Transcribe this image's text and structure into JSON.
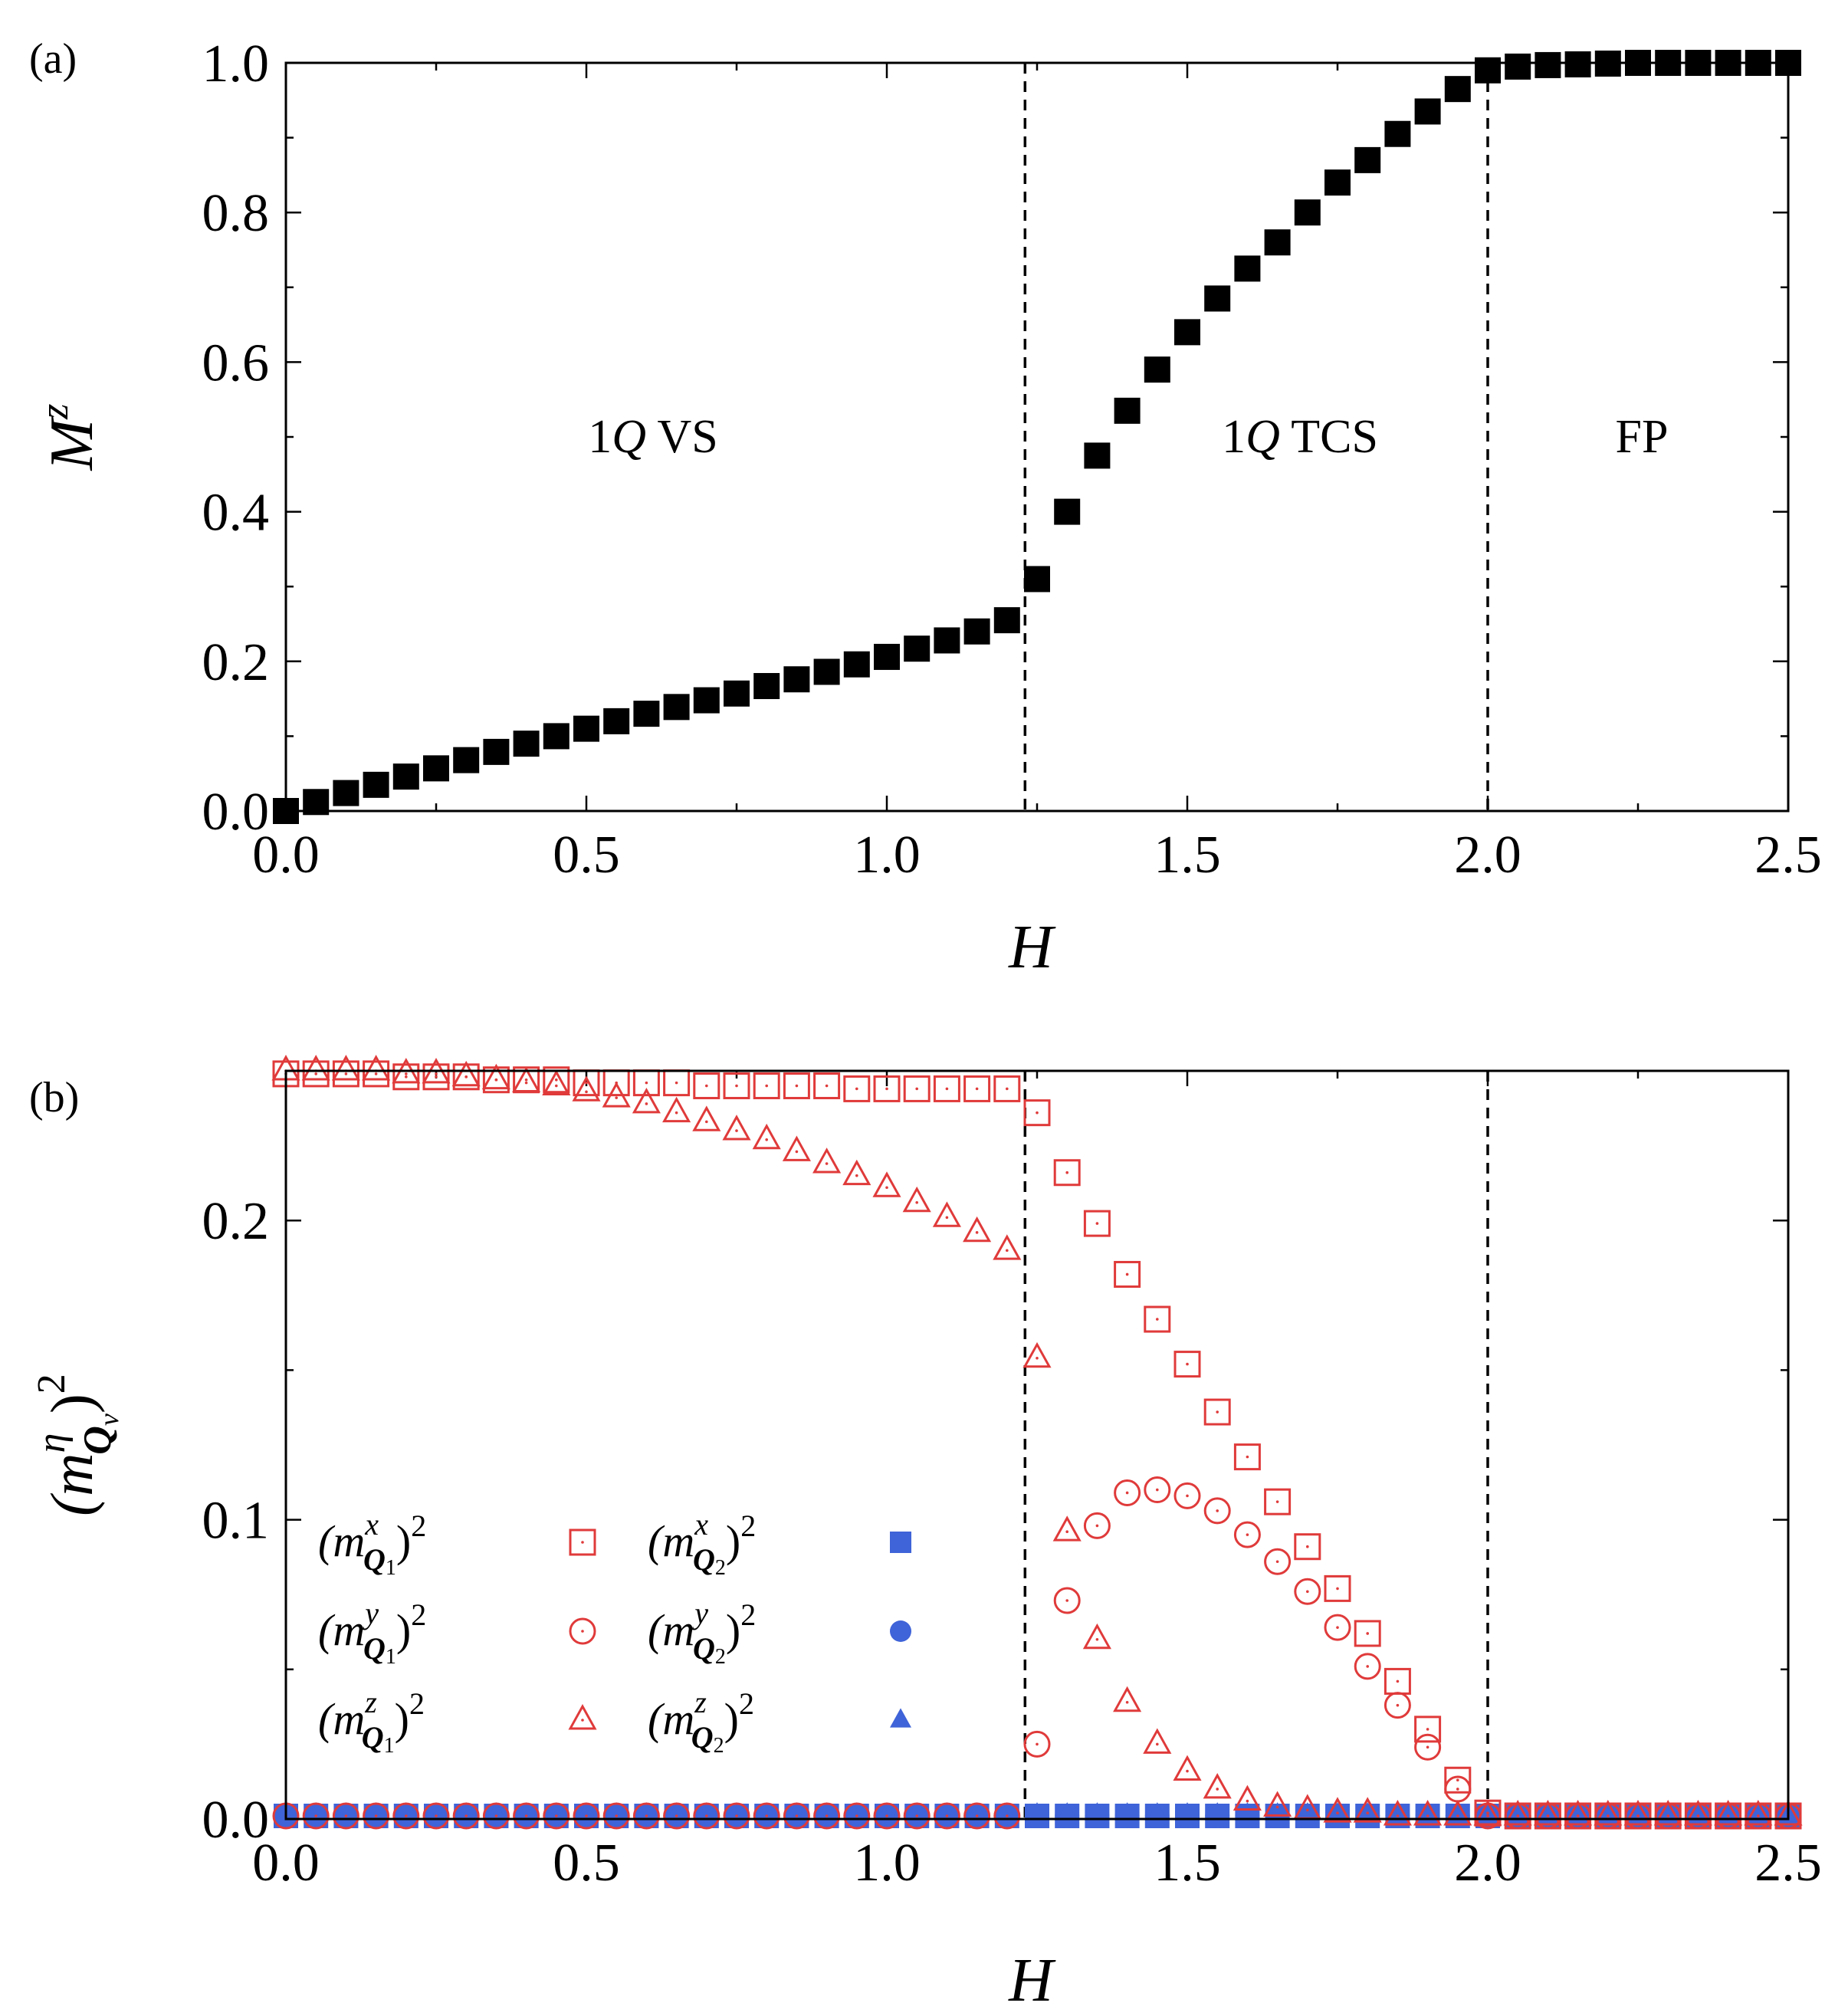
{
  "figure": {
    "panel_a_tag": "(a)",
    "panel_b_tag": "(b)",
    "region_labels": {
      "vs_num": "1",
      "vs_q": "Q",
      "vs_txt": " VS",
      "tcs_num": "1",
      "tcs_q": "Q",
      "tcs_txt": " TCS",
      "fp": "FP"
    },
    "legend": {
      "q1x": {
        "m": "(m",
        "sup": "x",
        "sub": "Q",
        "subidx": "1",
        "close": ")",
        "pow": "2"
      },
      "q1y": {
        "m": "(m",
        "sup": "y",
        "sub": "Q",
        "subidx": "1",
        "close": ")",
        "pow": "2"
      },
      "q1z": {
        "m": "(m",
        "sup": "z",
        "sub": "Q",
        "subidx": "1",
        "close": ")",
        "pow": "2"
      },
      "q2x": {
        "m": "(m",
        "sup": "x",
        "sub": "Q",
        "subidx": "2",
        "close": ")",
        "pow": "2"
      },
      "q2y": {
        "m": "(m",
        "sup": "y",
        "sub": "Q",
        "subidx": "2",
        "close": ")",
        "pow": "2"
      },
      "q2z": {
        "m": "(m",
        "sup": "z",
        "sub": "Q",
        "subidx": "2",
        "close": ")",
        "pow": "2"
      }
    },
    "ylabel_b": {
      "m": "(m",
      "sup": "η",
      "sub": "Q",
      "subidx": "ν",
      "close": ")",
      "pow": "2"
    },
    "colors": {
      "red": "#e03a3a",
      "blue": "#3f63d8",
      "black": "#000000"
    }
  },
  "chart_data": [
    {
      "type": "scatter",
      "panel": "a",
      "xlabel": "H",
      "ylabel_base": "M",
      "ylabel_sup": "z",
      "xlim": [
        0,
        2.5
      ],
      "ylim": [
        0,
        1.0
      ],
      "xticks": [
        "0.0",
        "0.5",
        "1.0",
        "1.5",
        "2.0",
        "2.5"
      ],
      "yticks": [
        "0.0",
        "0.2",
        "0.4",
        "0.6",
        "0.8",
        "1.0"
      ],
      "phase_boundaries": [
        1.23,
        2.0
      ],
      "series": [
        {
          "name": "M^z",
          "marker": "filled-square",
          "color": "#000000",
          "x": [
            0.0,
            0.05,
            0.1,
            0.15,
            0.2,
            0.25,
            0.3,
            0.35,
            0.4,
            0.45,
            0.5,
            0.55,
            0.6,
            0.65,
            0.7,
            0.75,
            0.8,
            0.85,
            0.9,
            0.95,
            1.0,
            1.05,
            1.1,
            1.15,
            1.2,
            1.25,
            1.3,
            1.35,
            1.4,
            1.45,
            1.5,
            1.55,
            1.6,
            1.65,
            1.7,
            1.75,
            1.8,
            1.85,
            1.9,
            1.95,
            2.0,
            2.05,
            2.1,
            2.15,
            2.2,
            2.25,
            2.3,
            2.35,
            2.4,
            2.45,
            2.5
          ],
          "y": [
            0.0,
            0.012,
            0.024,
            0.035,
            0.046,
            0.057,
            0.068,
            0.079,
            0.09,
            0.1,
            0.11,
            0.12,
            0.13,
            0.139,
            0.148,
            0.157,
            0.167,
            0.176,
            0.186,
            0.196,
            0.206,
            0.217,
            0.228,
            0.24,
            0.255,
            0.31,
            0.4,
            0.475,
            0.535,
            0.59,
            0.64,
            0.685,
            0.725,
            0.76,
            0.8,
            0.84,
            0.87,
            0.905,
            0.935,
            0.965,
            0.99,
            0.995,
            0.997,
            0.998,
            0.999,
            1.0,
            1.0,
            1.0,
            1.0,
            1.0,
            1.0
          ]
        }
      ]
    },
    {
      "type": "scatter",
      "panel": "b",
      "xlabel": "H",
      "xlim": [
        0,
        2.5
      ],
      "ylim": [
        0,
        0.25
      ],
      "xticks": [
        "0.0",
        "0.5",
        "1.0",
        "1.5",
        "2.0",
        "2.5"
      ],
      "yticks": [
        "0.0",
        "0.1",
        "0.2"
      ],
      "ytick_values": [
        0.0,
        0.1,
        0.2
      ],
      "phase_boundaries": [
        1.23,
        2.0
      ],
      "series": [
        {
          "name": "(m^x_Q1)^2",
          "marker": "open-square",
          "color": "#e03a3a",
          "x": [
            0.0,
            0.05,
            0.1,
            0.15,
            0.2,
            0.25,
            0.3,
            0.35,
            0.4,
            0.45,
            0.5,
            0.55,
            0.6,
            0.65,
            0.7,
            0.75,
            0.8,
            0.85,
            0.9,
            0.95,
            1.0,
            1.05,
            1.1,
            1.15,
            1.2,
            1.25,
            1.3,
            1.35,
            1.4,
            1.45,
            1.5,
            1.55,
            1.6,
            1.65,
            1.7,
            1.75,
            1.8,
            1.85,
            1.9,
            1.95,
            2.0,
            2.05,
            2.1,
            2.15,
            2.2,
            2.25,
            2.3,
            2.35,
            2.4,
            2.45,
            2.5
          ],
          "y": [
            0.249,
            0.249,
            0.249,
            0.249,
            0.248,
            0.248,
            0.248,
            0.247,
            0.247,
            0.247,
            0.246,
            0.246,
            0.246,
            0.246,
            0.245,
            0.245,
            0.245,
            0.245,
            0.245,
            0.244,
            0.244,
            0.244,
            0.244,
            0.244,
            0.244,
            0.236,
            0.216,
            0.199,
            0.182,
            0.167,
            0.152,
            0.136,
            0.121,
            0.106,
            0.091,
            0.077,
            0.062,
            0.046,
            0.03,
            0.013,
            0.002,
            0.001,
            0.001,
            0.001,
            0.001,
            0.001,
            0.001,
            0.001,
            0.001,
            0.001,
            0.001
          ]
        },
        {
          "name": "(m^y_Q1)^2",
          "marker": "open-circle",
          "color": "#e03a3a",
          "x": [
            0.0,
            0.05,
            0.1,
            0.15,
            0.2,
            0.25,
            0.3,
            0.35,
            0.4,
            0.45,
            0.5,
            0.55,
            0.6,
            0.65,
            0.7,
            0.75,
            0.8,
            0.85,
            0.9,
            0.95,
            1.0,
            1.05,
            1.1,
            1.15,
            1.2,
            1.25,
            1.3,
            1.35,
            1.4,
            1.45,
            1.5,
            1.55,
            1.6,
            1.65,
            1.7,
            1.75,
            1.8,
            1.85,
            1.9,
            1.95,
            2.0,
            2.05,
            2.1,
            2.15,
            2.2,
            2.25,
            2.3,
            2.35,
            2.4,
            2.45,
            2.5
          ],
          "y": [
            0.001,
            0.001,
            0.001,
            0.001,
            0.001,
            0.001,
            0.001,
            0.001,
            0.001,
            0.001,
            0.001,
            0.001,
            0.001,
            0.001,
            0.001,
            0.001,
            0.001,
            0.001,
            0.001,
            0.001,
            0.001,
            0.001,
            0.001,
            0.001,
            0.001,
            0.025,
            0.073,
            0.098,
            0.109,
            0.11,
            0.108,
            0.103,
            0.095,
            0.086,
            0.076,
            0.064,
            0.051,
            0.038,
            0.024,
            0.01,
            0.001,
            0.001,
            0.001,
            0.001,
            0.001,
            0.001,
            0.001,
            0.001,
            0.001,
            0.001,
            0.001
          ]
        },
        {
          "name": "(m^z_Q1)^2",
          "marker": "open-triangle",
          "color": "#e03a3a",
          "x": [
            0.0,
            0.05,
            0.1,
            0.15,
            0.2,
            0.25,
            0.3,
            0.35,
            0.4,
            0.45,
            0.5,
            0.55,
            0.6,
            0.65,
            0.7,
            0.75,
            0.8,
            0.85,
            0.9,
            0.95,
            1.0,
            1.05,
            1.1,
            1.15,
            1.2,
            1.25,
            1.3,
            1.35,
            1.4,
            1.45,
            1.5,
            1.55,
            1.6,
            1.65,
            1.7,
            1.75,
            1.8,
            1.85,
            1.9,
            1.95,
            2.0,
            2.05,
            2.1,
            2.15,
            2.2,
            2.25,
            2.3,
            2.35,
            2.4,
            2.45,
            2.5
          ],
          "y": [
            0.25,
            0.25,
            0.25,
            0.25,
            0.249,
            0.249,
            0.248,
            0.247,
            0.246,
            0.245,
            0.243,
            0.241,
            0.239,
            0.236,
            0.233,
            0.23,
            0.227,
            0.223,
            0.219,
            0.215,
            0.211,
            0.206,
            0.201,
            0.196,
            0.19,
            0.154,
            0.096,
            0.06,
            0.039,
            0.025,
            0.016,
            0.01,
            0.006,
            0.004,
            0.003,
            0.002,
            0.002,
            0.001,
            0.001,
            0.001,
            0.001,
            0.001,
            0.001,
            0.001,
            0.001,
            0.001,
            0.001,
            0.001,
            0.001,
            0.001,
            0.001
          ]
        },
        {
          "name": "(m^x_Q2)^2",
          "marker": "filled-square",
          "color": "#3f63d8",
          "x": [
            0.0,
            0.05,
            0.1,
            0.15,
            0.2,
            0.25,
            0.3,
            0.35,
            0.4,
            0.45,
            0.5,
            0.55,
            0.6,
            0.65,
            0.7,
            0.75,
            0.8,
            0.85,
            0.9,
            0.95,
            1.0,
            1.05,
            1.1,
            1.15,
            1.2,
            1.25,
            1.3,
            1.35,
            1.4,
            1.45,
            1.5,
            1.55,
            1.6,
            1.65,
            1.7,
            1.75,
            1.8,
            1.85,
            1.9,
            1.95,
            2.0,
            2.05,
            2.1,
            2.15,
            2.2,
            2.25,
            2.3,
            2.35,
            2.4,
            2.45,
            2.5
          ],
          "y": [
            0,
            0,
            0,
            0,
            0,
            0,
            0,
            0,
            0,
            0,
            0,
            0,
            0,
            0,
            0,
            0,
            0,
            0,
            0,
            0,
            0,
            0,
            0,
            0,
            0,
            0,
            0,
            0,
            0,
            0,
            0,
            0,
            0,
            0,
            0,
            0,
            0,
            0,
            0,
            0,
            0,
            0,
            0,
            0,
            0,
            0,
            0,
            0,
            0,
            0,
            0
          ]
        },
        {
          "name": "(m^y_Q2)^2",
          "marker": "filled-circle",
          "color": "#3f63d8",
          "x": [
            0.0,
            0.05,
            0.1,
            0.15,
            0.2,
            0.25,
            0.3,
            0.35,
            0.4,
            0.45,
            0.5,
            0.55,
            0.6,
            0.65,
            0.7,
            0.75,
            0.8,
            0.85,
            0.9,
            0.95,
            1.0,
            1.05,
            1.1,
            1.15,
            1.2,
            1.25,
            1.3,
            1.35,
            1.4,
            1.45,
            1.5,
            1.55,
            1.6,
            1.65,
            1.7,
            1.75,
            1.8,
            1.85,
            1.9,
            1.95,
            2.0,
            2.05,
            2.1,
            2.15,
            2.2,
            2.25,
            2.3,
            2.35,
            2.4,
            2.45,
            2.5
          ],
          "y": [
            0,
            0,
            0,
            0,
            0,
            0,
            0,
            0,
            0,
            0,
            0,
            0,
            0,
            0,
            0,
            0,
            0,
            0,
            0,
            0,
            0,
            0,
            0,
            0,
            0,
            0,
            0,
            0,
            0,
            0,
            0,
            0,
            0,
            0,
            0,
            0,
            0,
            0,
            0,
            0,
            0,
            0,
            0,
            0,
            0,
            0,
            0,
            0,
            0,
            0,
            0
          ]
        },
        {
          "name": "(m^z_Q2)^2",
          "marker": "filled-triangle",
          "color": "#3f63d8",
          "x": [
            0.0,
            0.05,
            0.1,
            0.15,
            0.2,
            0.25,
            0.3,
            0.35,
            0.4,
            0.45,
            0.5,
            0.55,
            0.6,
            0.65,
            0.7,
            0.75,
            0.8,
            0.85,
            0.9,
            0.95,
            1.0,
            1.05,
            1.1,
            1.15,
            1.2,
            1.25,
            1.3,
            1.35,
            1.4,
            1.45,
            1.5,
            1.55,
            1.6,
            1.65,
            1.7,
            1.75,
            1.8,
            1.85,
            1.9,
            1.95,
            2.0,
            2.05,
            2.1,
            2.15,
            2.2,
            2.25,
            2.3,
            2.35,
            2.4,
            2.45,
            2.5
          ],
          "y": [
            0,
            0,
            0,
            0,
            0,
            0,
            0,
            0,
            0,
            0,
            0,
            0,
            0,
            0,
            0,
            0,
            0,
            0,
            0,
            0,
            0,
            0,
            0,
            0,
            0,
            0,
            0,
            0,
            0,
            0,
            0,
            0,
            0,
            0,
            0,
            0,
            0,
            0,
            0,
            0,
            0,
            0,
            0,
            0,
            0,
            0,
            0,
            0,
            0,
            0,
            0
          ]
        }
      ]
    }
  ]
}
